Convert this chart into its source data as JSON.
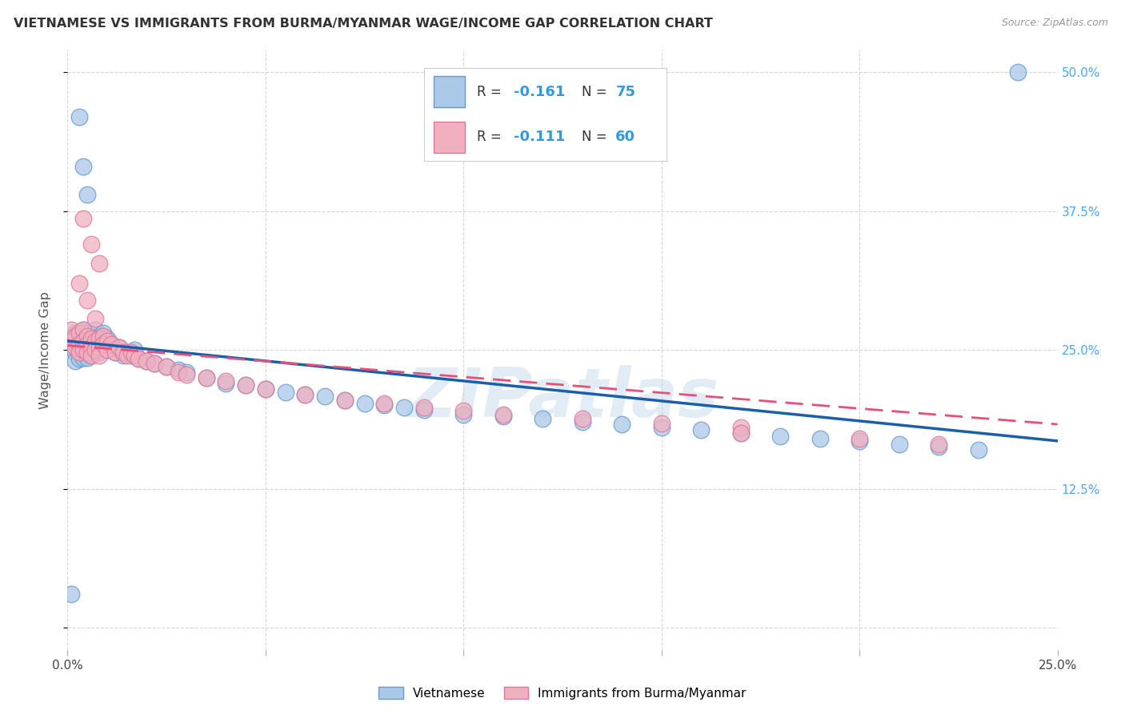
{
  "title": "VIETNAMESE VS IMMIGRANTS FROM BURMA/MYANMAR WAGE/INCOME GAP CORRELATION CHART",
  "source": "Source: ZipAtlas.com",
  "ylabel": "Wage/Income Gap",
  "xlim": [
    0.0,
    0.25
  ],
  "ylim": [
    -0.02,
    0.52
  ],
  "blue_color": "#aac8e8",
  "pink_color": "#f0b0c0",
  "blue_edge": "#6699cc",
  "pink_edge": "#dd7799",
  "blue_line": "#1a5fa8",
  "pink_line": "#e8507a",
  "watermark": "ZIPatlas",
  "legend_label1": "Vietnamese",
  "legend_label2": "Immigrants from Burma/Myanmar",
  "blue_R": "-0.161",
  "blue_N": "75",
  "pink_R": "-0.111",
  "pink_N": "60",
  "blue_x": [
    0.001,
    0.001,
    0.002,
    0.002,
    0.002,
    0.002,
    0.003,
    0.003,
    0.003,
    0.003,
    0.004,
    0.004,
    0.004,
    0.004,
    0.005,
    0.005,
    0.005,
    0.005,
    0.006,
    0.006,
    0.006,
    0.007,
    0.007,
    0.007,
    0.008,
    0.008,
    0.008,
    0.009,
    0.009,
    0.01,
    0.01,
    0.011,
    0.012,
    0.013,
    0.014,
    0.015,
    0.016,
    0.017,
    0.018,
    0.02,
    0.022,
    0.025,
    0.028,
    0.03,
    0.035,
    0.04,
    0.045,
    0.05,
    0.055,
    0.06,
    0.065,
    0.07,
    0.075,
    0.08,
    0.085,
    0.09,
    0.1,
    0.11,
    0.12,
    0.13,
    0.14,
    0.15,
    0.16,
    0.17,
    0.18,
    0.19,
    0.2,
    0.21,
    0.22,
    0.23,
    0.003,
    0.004,
    0.005,
    0.24,
    0.001
  ],
  "blue_y": [
    0.258,
    0.252,
    0.265,
    0.255,
    0.248,
    0.24,
    0.262,
    0.255,
    0.248,
    0.242,
    0.268,
    0.258,
    0.25,
    0.243,
    0.265,
    0.258,
    0.25,
    0.243,
    0.26,
    0.252,
    0.245,
    0.268,
    0.258,
    0.25,
    0.262,
    0.255,
    0.248,
    0.265,
    0.255,
    0.26,
    0.25,
    0.255,
    0.248,
    0.252,
    0.245,
    0.248,
    0.245,
    0.25,
    0.242,
    0.24,
    0.238,
    0.235,
    0.232,
    0.23,
    0.225,
    0.22,
    0.218,
    0.215,
    0.212,
    0.21,
    0.208,
    0.205,
    0.202,
    0.2,
    0.198,
    0.196,
    0.192,
    0.19,
    0.188,
    0.185,
    0.183,
    0.18,
    0.178,
    0.175,
    0.172,
    0.17,
    0.168,
    0.165,
    0.163,
    0.16,
    0.46,
    0.415,
    0.39,
    0.5,
    0.03
  ],
  "pink_x": [
    0.001,
    0.001,
    0.002,
    0.002,
    0.003,
    0.003,
    0.003,
    0.004,
    0.004,
    0.004,
    0.005,
    0.005,
    0.005,
    0.006,
    0.006,
    0.006,
    0.007,
    0.007,
    0.008,
    0.008,
    0.008,
    0.009,
    0.009,
    0.01,
    0.01,
    0.011,
    0.012,
    0.013,
    0.014,
    0.015,
    0.016,
    0.017,
    0.018,
    0.02,
    0.022,
    0.025,
    0.028,
    0.03,
    0.035,
    0.04,
    0.045,
    0.05,
    0.06,
    0.07,
    0.08,
    0.09,
    0.1,
    0.11,
    0.13,
    0.15,
    0.17,
    0.004,
    0.006,
    0.008,
    0.003,
    0.005,
    0.007,
    0.17,
    0.2,
    0.22
  ],
  "pink_y": [
    0.268,
    0.258,
    0.262,
    0.252,
    0.265,
    0.255,
    0.248,
    0.268,
    0.258,
    0.25,
    0.262,
    0.255,
    0.248,
    0.26,
    0.252,
    0.245,
    0.258,
    0.25,
    0.26,
    0.252,
    0.245,
    0.262,
    0.255,
    0.258,
    0.25,
    0.255,
    0.248,
    0.252,
    0.248,
    0.245,
    0.248,
    0.245,
    0.242,
    0.24,
    0.238,
    0.235,
    0.23,
    0.228,
    0.225,
    0.222,
    0.218,
    0.215,
    0.21,
    0.205,
    0.202,
    0.198,
    0.195,
    0.192,
    0.188,
    0.184,
    0.18,
    0.368,
    0.345,
    0.328,
    0.31,
    0.295,
    0.278,
    0.175,
    0.17,
    0.165
  ]
}
